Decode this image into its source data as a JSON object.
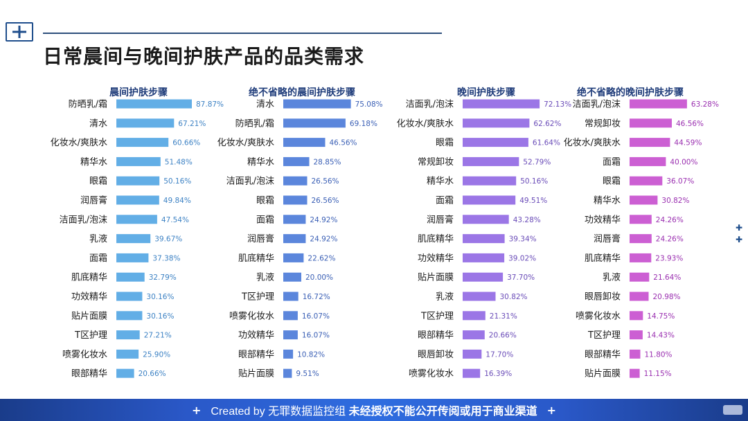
{
  "page": {
    "title": "日常晨间与晚间护肤产品的品类需求"
  },
  "footer": {
    "text_prefix": "Created by 无罪数据监控组",
    "text_bold": "未经授权不能公开传阅或用于商业渠道"
  },
  "colors": {
    "chart1": "#62aee6",
    "chart2": "#5b86dc",
    "chart3": "#9b76e6",
    "chart4": "#cc5fd3",
    "label1": "#3d82c4",
    "label2": "#3a5fb5",
    "label3": "#6a4cb8",
    "label4": "#9a2fb0",
    "title": "#1f3c7a"
  },
  "chart_data": [
    {
      "type": "bar",
      "title": "晨间护肤步骤",
      "categories": [
        "防晒乳/霜",
        "清水",
        "化妆水/爽肤水",
        "精华水",
        "眼霜",
        "润唇膏",
        "洁面乳/泡沫",
        "乳液",
        "面霜",
        "肌底精华",
        "功效精华",
        "贴片面膜",
        "T区护理",
        "喷雾化妆水",
        "眼部精华"
      ],
      "values": [
        87.87,
        67.21,
        60.66,
        51.48,
        50.16,
        49.84,
        47.54,
        39.67,
        37.38,
        32.79,
        30.16,
        30.16,
        27.21,
        25.9,
        20.66
      ],
      "value_labels": [
        "87.87%",
        "67.21%",
        "60.66%",
        "51.48%",
        "50.16%",
        "49.84%",
        "47.54%",
        "39.67%",
        "37.38%",
        "32.79%",
        "30.16%",
        "30.16%",
        "27.21%",
        "25.90%",
        "20.66%"
      ]
    },
    {
      "type": "bar",
      "title": "绝不省略的晨间护肤步骤",
      "categories": [
        "清水",
        "防晒乳/霜",
        "化妆水/爽肤水",
        "精华水",
        "洁面乳/泡沫",
        "眼霜",
        "面霜",
        "润唇膏",
        "肌底精华",
        "乳液",
        "T区护理",
        "喷雾化妆水",
        "功效精华",
        "眼部精华",
        "贴片面膜"
      ],
      "values": [
        75.08,
        69.18,
        46.56,
        28.85,
        26.56,
        26.56,
        24.92,
        24.92,
        22.62,
        20.0,
        16.72,
        16.07,
        16.07,
        10.82,
        9.51
      ],
      "value_labels": [
        "75.08%",
        "69.18%",
        "46.56%",
        "28.85%",
        "26.56%",
        "26.56%",
        "24.92%",
        "24.92%",
        "22.62%",
        "20.00%",
        "16.72%",
        "16.07%",
        "16.07%",
        "10.82%",
        "9.51%"
      ]
    },
    {
      "type": "bar",
      "title": "晚间护肤步骤",
      "categories": [
        "洁面乳/泡沫",
        "化妆水/爽肤水",
        "眼霜",
        "常规卸妆",
        "精华水",
        "面霜",
        "润唇膏",
        "肌底精华",
        "功效精华",
        "贴片面膜",
        "乳液",
        "T区护理",
        "眼部精华",
        "眼唇卸妆",
        "喷雾化妆水"
      ],
      "values": [
        72.13,
        62.62,
        61.64,
        52.79,
        50.16,
        49.51,
        43.28,
        39.34,
        39.02,
        37.7,
        30.82,
        21.31,
        20.66,
        17.7,
        16.39
      ],
      "value_labels": [
        "72.13%",
        "62.62%",
        "61.64%",
        "52.79%",
        "50.16%",
        "49.51%",
        "43.28%",
        "39.34%",
        "39.02%",
        "37.70%",
        "30.82%",
        "21.31%",
        "20.66%",
        "17.70%",
        "16.39%"
      ]
    },
    {
      "type": "bar",
      "title": "绝不省略的晚间护肤步骤",
      "categories": [
        "洁面乳/泡沫",
        "常规卸妆",
        "化妆水/爽肤水",
        "面霜",
        "眼霜",
        "精华水",
        "功效精华",
        "润唇膏",
        "肌底精华",
        "乳液",
        "眼唇卸妆",
        "喷雾化妆水",
        "T区护理",
        "眼部精华",
        "贴片面膜"
      ],
      "values": [
        63.28,
        46.56,
        44.59,
        40.0,
        36.07,
        30.82,
        24.26,
        24.26,
        23.93,
        21.64,
        20.98,
        14.75,
        14.43,
        11.8,
        11.15
      ],
      "value_labels": [
        "63.28%",
        "46.56%",
        "44.59%",
        "40.00%",
        "36.07%",
        "30.82%",
        "24.26%",
        "24.26%",
        "23.93%",
        "21.64%",
        "20.98%",
        "14.75%",
        "14.43%",
        "11.80%",
        "11.15%"
      ]
    }
  ]
}
